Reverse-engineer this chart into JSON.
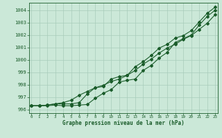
{
  "title": "Graphe pression niveau de la mer (hPa)",
  "background_color": "#cbe8d8",
  "grid_color": "#a8ccba",
  "line_color": "#1a5c2a",
  "x_ticks": [
    0,
    1,
    2,
    3,
    4,
    5,
    6,
    7,
    8,
    9,
    10,
    11,
    12,
    13,
    14,
    15,
    16,
    17,
    18,
    19,
    20,
    21,
    22,
    23
  ],
  "y_ticks": [
    996,
    997,
    998,
    999,
    1000,
    1001,
    1002,
    1003,
    1004
  ],
  "ylim": [
    995.7,
    1004.6
  ],
  "xlim": [
    -0.3,
    23.3
  ],
  "series1": [
    996.3,
    996.3,
    996.3,
    996.35,
    996.3,
    996.3,
    996.35,
    996.4,
    996.9,
    997.3,
    997.6,
    998.2,
    998.35,
    998.45,
    999.15,
    999.55,
    1000.15,
    1000.6,
    1001.4,
    1001.7,
    1002.0,
    1002.8,
    1003.5,
    1004.0
  ],
  "series2": [
    996.3,
    996.3,
    996.35,
    996.45,
    996.45,
    996.45,
    996.55,
    997.25,
    997.75,
    997.85,
    998.45,
    998.65,
    998.75,
    999.45,
    999.85,
    1000.35,
    1000.95,
    1001.25,
    1001.75,
    1001.95,
    1002.35,
    1003.05,
    1003.75,
    1004.25
  ],
  "series3": [
    996.3,
    996.3,
    996.35,
    996.45,
    996.55,
    996.75,
    997.15,
    997.45,
    997.75,
    997.95,
    998.25,
    998.45,
    998.75,
    999.15,
    999.65,
    1000.05,
    1000.55,
    1000.95,
    1001.25,
    1001.65,
    1001.95,
    1002.45,
    1002.95,
    1003.65
  ],
  "xlabel_fontsize": 5.5,
  "ytick_fontsize": 5.0,
  "xtick_fontsize": 4.2,
  "linewidth": 0.8,
  "markersize": 2.0
}
